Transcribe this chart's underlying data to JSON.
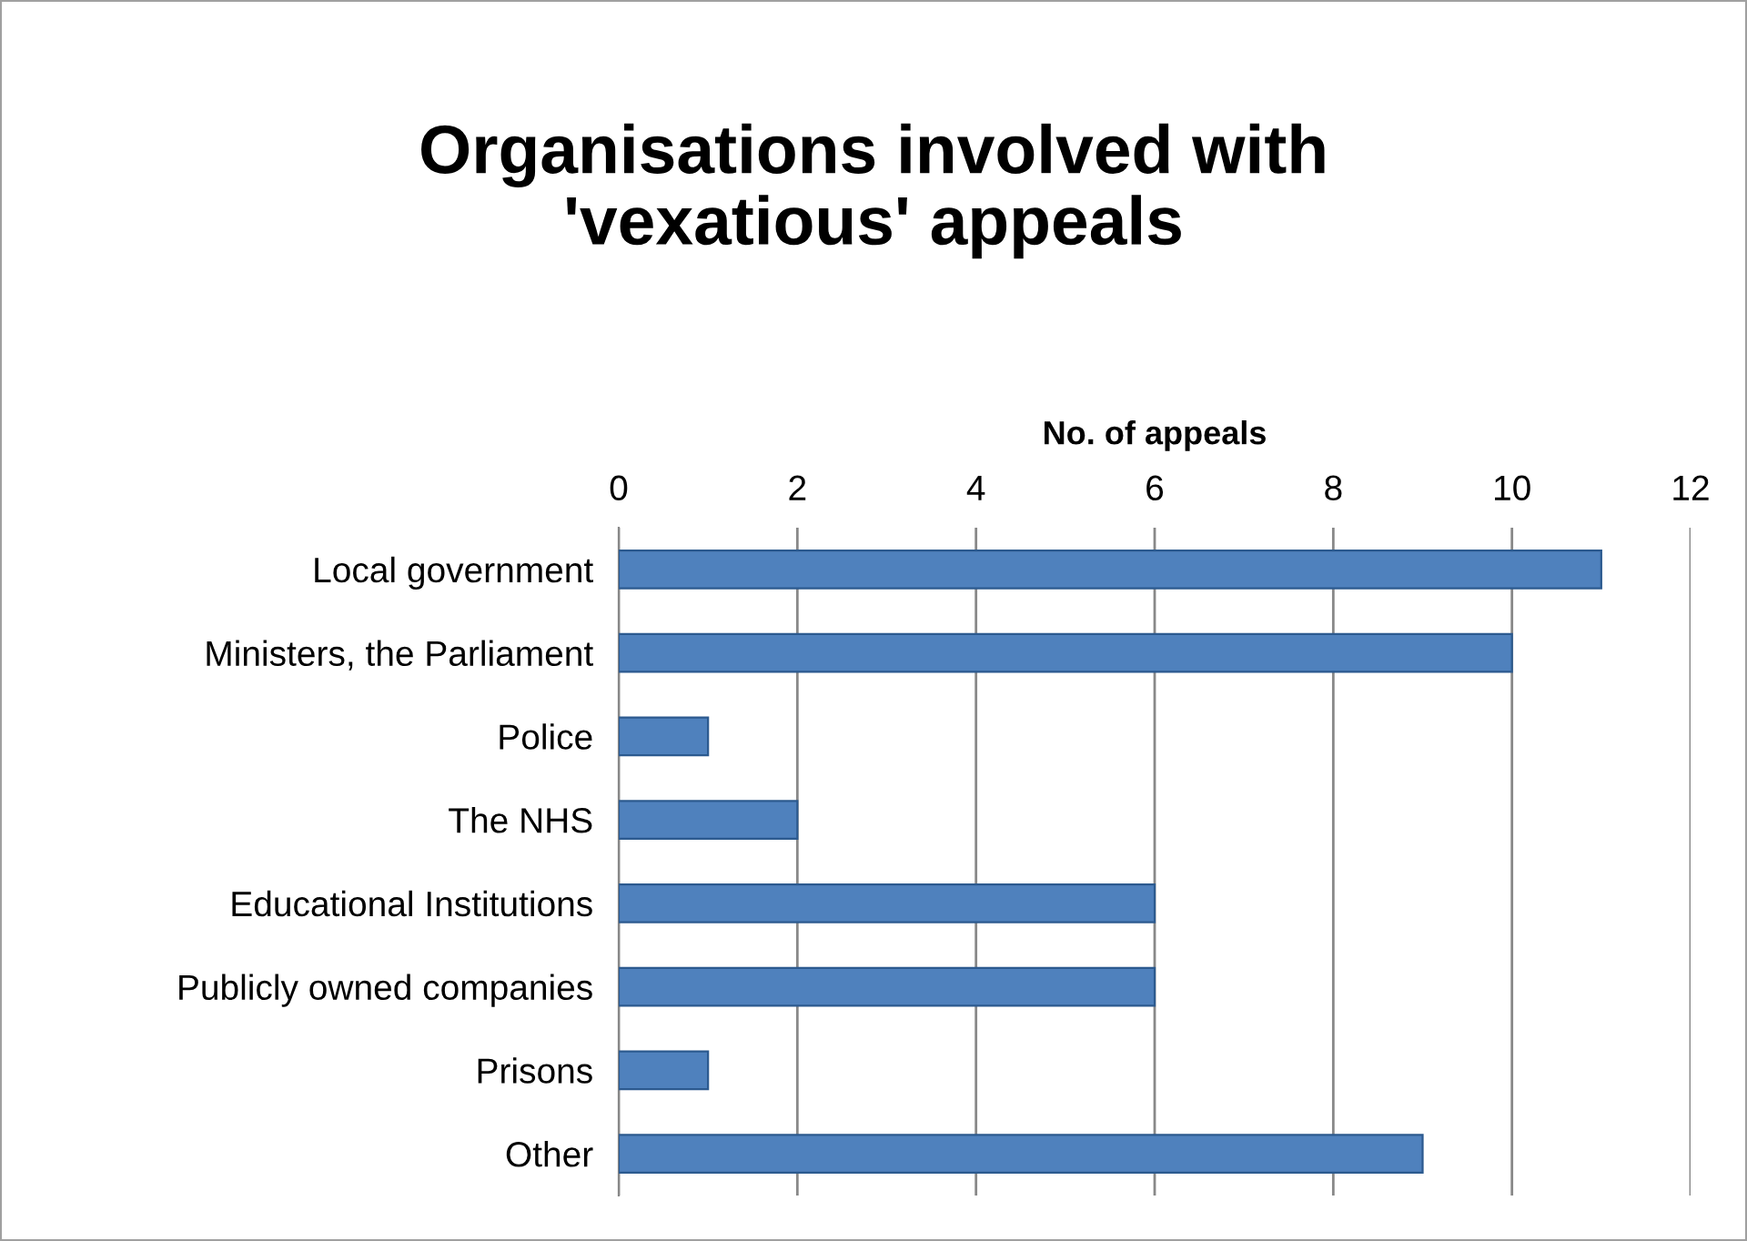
{
  "chart_data": {
    "type": "bar",
    "orientation": "horizontal",
    "title": "Organisations involved with\n'vexatious' appeals",
    "xlabel": "No. of appeals",
    "categories": [
      "Local government",
      "Ministers, the Parliament",
      "Police",
      "The NHS",
      "Educational Institutions",
      "Publicly owned companies",
      "Prisons",
      "Other"
    ],
    "values": [
      11,
      10,
      1,
      2,
      6,
      6,
      1,
      9
    ],
    "color": "#4f81bd",
    "xlim": [
      0,
      12
    ],
    "xticks": [
      0,
      2,
      4,
      6,
      8,
      10,
      12
    ],
    "grid": "x",
    "legend": false
  }
}
